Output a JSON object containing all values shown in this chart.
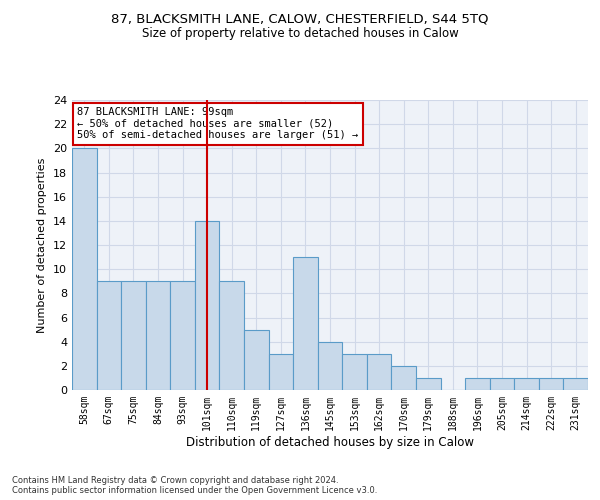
{
  "title": "87, BLACKSMITH LANE, CALOW, CHESTERFIELD, S44 5TQ",
  "subtitle": "Size of property relative to detached houses in Calow",
  "xlabel": "Distribution of detached houses by size in Calow",
  "ylabel": "Number of detached properties",
  "categories": [
    "58sqm",
    "67sqm",
    "75sqm",
    "84sqm",
    "93sqm",
    "101sqm",
    "110sqm",
    "119sqm",
    "127sqm",
    "136sqm",
    "145sqm",
    "153sqm",
    "162sqm",
    "170sqm",
    "179sqm",
    "188sqm",
    "196sqm",
    "205sqm",
    "214sqm",
    "222sqm",
    "231sqm"
  ],
  "values": [
    20,
    9,
    9,
    9,
    9,
    14,
    9,
    5,
    3,
    11,
    4,
    3,
    3,
    2,
    1,
    0,
    1,
    1,
    1,
    1,
    1
  ],
  "bar_color": "#c8d9ea",
  "bar_edgecolor": "#5a9bc8",
  "highlight_index": 5,
  "vline_color": "#cc0000",
  "vline_x": 5,
  "annotation_text": "87 BLACKSMITH LANE: 99sqm\n← 50% of detached houses are smaller (52)\n50% of semi-detached houses are larger (51) →",
  "annotation_box_edgecolor": "#cc0000",
  "ylim": [
    0,
    24
  ],
  "yticks": [
    0,
    2,
    4,
    6,
    8,
    10,
    12,
    14,
    16,
    18,
    20,
    22,
    24
  ],
  "grid_color": "#d0d8e8",
  "background_color": "#eef2f8",
  "footer_line1": "Contains HM Land Registry data © Crown copyright and database right 2024.",
  "footer_line2": "Contains public sector information licensed under the Open Government Licence v3.0."
}
